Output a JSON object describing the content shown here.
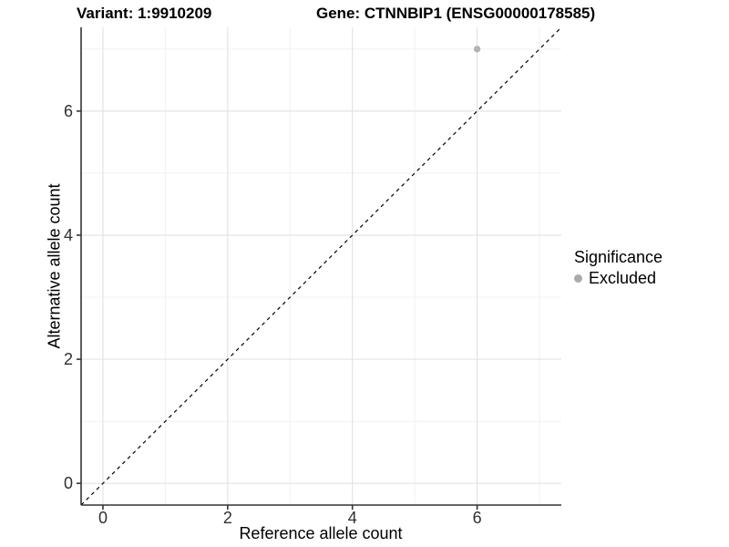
{
  "titles": {
    "variant": "Variant: 1:9910209",
    "gene": "Gene: CTNNBIP1 (ENSG00000178585)"
  },
  "axes": {
    "x_label": "Reference allele count",
    "y_label": "Alternative allele count",
    "x_tick_labels": [
      "0",
      "2",
      "4",
      "6"
    ],
    "y_tick_labels": [
      "0",
      "2",
      "4",
      "6"
    ]
  },
  "legend": {
    "title": "Significance",
    "items": [
      {
        "label": "Excluded",
        "color": "#ABABAB"
      }
    ]
  },
  "colors": {
    "point": "#B3B3B3",
    "major_gridline": "#E3E3E3",
    "minor_gridline": "#F1F1F1",
    "axis_line": "#333333",
    "reference_line": "#000000",
    "tick_label": "#303030"
  },
  "chart_data": {
    "type": "scatter",
    "title": "Variant: 1:9910209 | Gene: CTNNBIP1 (ENSG00000178585)",
    "xlabel": "Reference allele count",
    "ylabel": "Alternative allele count",
    "xlim": [
      -0.35,
      7.35
    ],
    "ylim": [
      -0.35,
      7.35
    ],
    "x_major_ticks": [
      0,
      2,
      4,
      6
    ],
    "y_major_ticks": [
      0,
      2,
      4,
      6
    ],
    "x_minor_gridlines": [
      1,
      3,
      5,
      7
    ],
    "y_minor_gridlines": [
      1,
      3,
      5,
      7
    ],
    "grid": true,
    "legend_position": "right",
    "series": [
      {
        "name": "Excluded",
        "color": "#B3B3B3",
        "points": [
          {
            "x": 6,
            "y": 7
          }
        ]
      }
    ],
    "reference_line": {
      "type": "identity",
      "style": "dashed",
      "from": [
        -0.35,
        -0.35
      ],
      "to": [
        7.35,
        7.35
      ],
      "color": "#000000"
    }
  }
}
